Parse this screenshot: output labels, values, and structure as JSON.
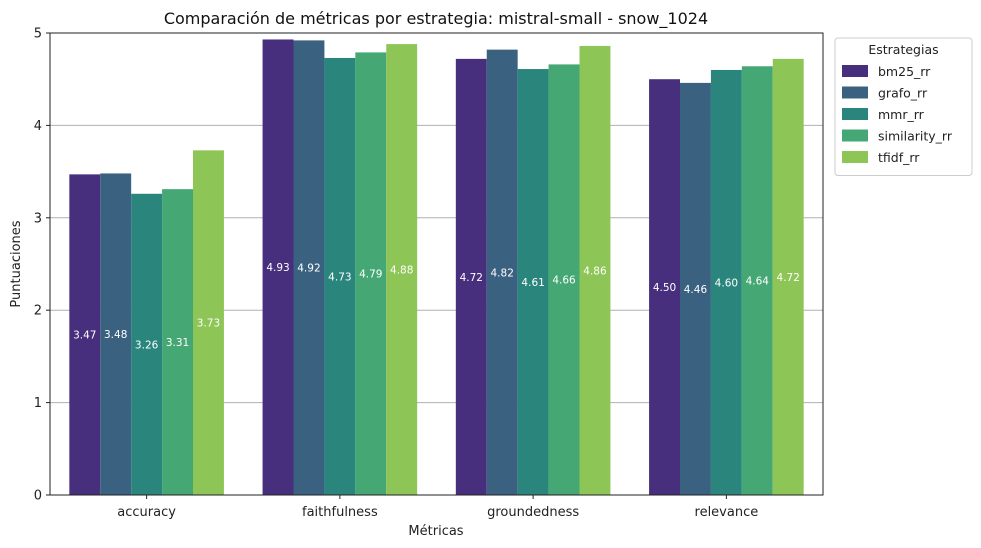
{
  "chart_data": {
    "type": "bar",
    "title": "Comparación de métricas por estrategia: mistral-small - snow_1024",
    "xlabel": "Métricas",
    "ylabel": "Puntuaciones",
    "categories": [
      "accuracy",
      "faithfulness",
      "groundedness",
      "relevance"
    ],
    "ylim": [
      0,
      5
    ],
    "yticks": [
      "0",
      "1",
      "2",
      "3",
      "4",
      "5"
    ],
    "grid": "horizontal",
    "legend": {
      "title": "Estrategias",
      "placement": "outside-top-right"
    },
    "series": [
      {
        "name": "bm25_rr",
        "color": "#472f7d",
        "values": [
          3.47,
          4.93,
          4.72,
          4.5
        ],
        "labels": [
          "3.47",
          "4.93",
          "4.72",
          "4.50"
        ]
      },
      {
        "name": "grafo_rr",
        "color": "#3b6181",
        "values": [
          3.48,
          4.92,
          4.82,
          4.46
        ],
        "labels": [
          "3.48",
          "4.92",
          "4.82",
          "4.46"
        ]
      },
      {
        "name": "mmr_rr",
        "color": "#2a857d",
        "values": [
          3.26,
          4.73,
          4.61,
          4.6
        ],
        "labels": [
          "3.26",
          "4.73",
          "4.61",
          "4.60"
        ]
      },
      {
        "name": "similarity_rr",
        "color": "#45a874",
        "values": [
          3.31,
          4.79,
          4.66,
          4.64
        ],
        "labels": [
          "3.31",
          "4.79",
          "4.66",
          "4.64"
        ]
      },
      {
        "name": "tfidf_rr",
        "color": "#8dc656",
        "values": [
          3.73,
          4.88,
          4.86,
          4.72
        ],
        "labels": [
          "3.73",
          "4.88",
          "4.86",
          "4.72"
        ]
      }
    ]
  }
}
